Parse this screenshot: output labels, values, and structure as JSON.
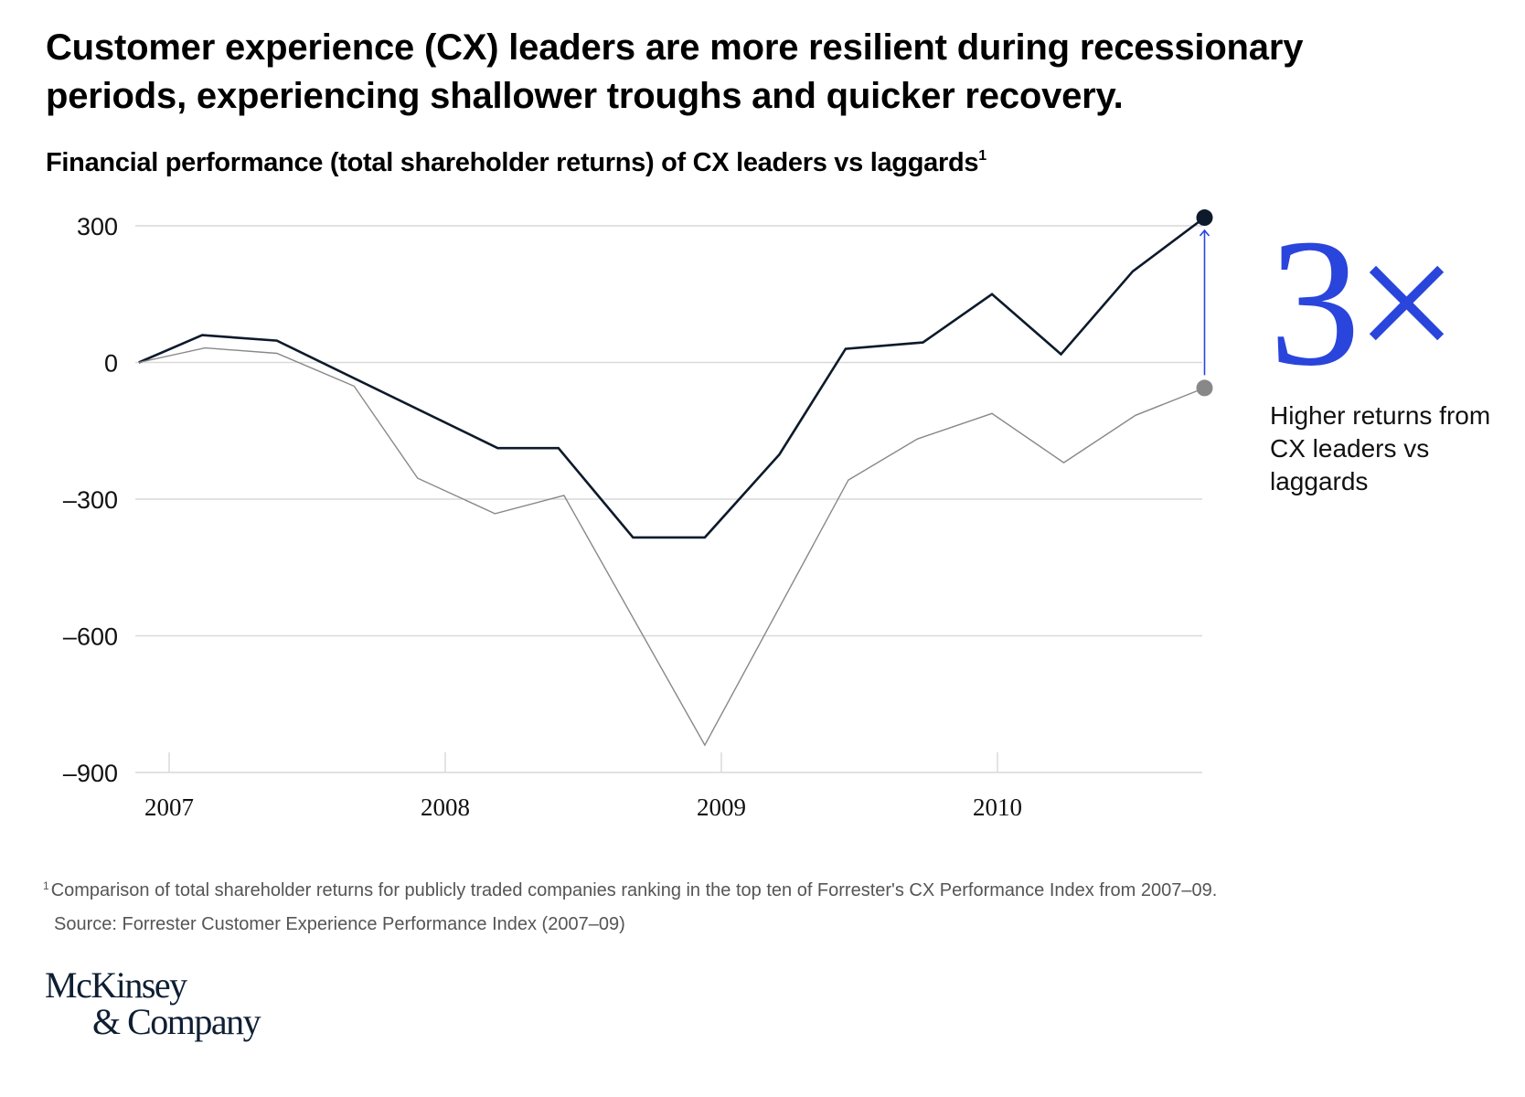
{
  "header": {
    "title": "Customer experience (CX) leaders are more resilient during recessionary periods, experiencing shallower troughs and quicker recovery.",
    "subtitle": "Financial performance (total shareholder returns) of CX leaders vs laggards",
    "subtitle_footnote_marker": "1"
  },
  "callout": {
    "multiplier": "3×",
    "text": "Higher returns from CX leaders vs laggards",
    "accent_color": "#2a45dc"
  },
  "footer": {
    "footnote_marker": "1",
    "footnote": "Comparison of total shareholder returns for publicly traded companies ranking in the top ten of Forrester's CX Performance Index from 2007–09.",
    "source": "Source: Forrester Customer Experience Performance Index (2007–09)",
    "logo_line1": "McKinsey",
    "logo_line2": "& Company"
  },
  "chart_data": {
    "type": "line",
    "title": "Financial performance (total shareholder returns) of CX leaders vs laggards",
    "xlabel": "",
    "ylabel": "",
    "ylim": [
      -900,
      300
    ],
    "xlim": [
      2006.88,
      2010.76
    ],
    "y_ticks": [
      300,
      0,
      -300,
      -600,
      -900
    ],
    "y_tick_labels": [
      "300",
      "0",
      "–300",
      "–600",
      "–900"
    ],
    "x_ticks": [
      2007,
      2008,
      2009,
      2010
    ],
    "x_tick_labels": [
      "2007",
      "2008",
      "2009",
      "2010"
    ],
    "grid": "horizontal",
    "legend": "none",
    "series": [
      {
        "name": "CX leaders",
        "color": "#0c1a2b",
        "x": [
          2006.89,
          2007.12,
          2007.39,
          2008.19,
          2008.41,
          2008.68,
          2008.94,
          2009.21,
          2009.45,
          2009.73,
          2009.98,
          2010.23,
          2010.49,
          2010.75
        ],
        "values": [
          0,
          60,
          48,
          -188,
          -188,
          -384,
          -384,
          -202,
          30,
          44,
          150,
          18,
          200,
          318
        ]
      },
      {
        "name": "CX laggards",
        "color": "#888888",
        "x": [
          2006.89,
          2007.13,
          2007.39,
          2007.67,
          2007.9,
          2008.18,
          2008.43,
          2008.94,
          2009.46,
          2009.71,
          2009.98,
          2010.24,
          2010.5,
          2010.75
        ],
        "values": [
          0,
          32,
          20,
          -52,
          -254,
          -332,
          -292,
          -840,
          -258,
          -168,
          -112,
          -220,
          -116,
          -56
        ]
      }
    ],
    "annotations": [
      {
        "type": "arrow",
        "from_series": "CX laggards",
        "to_series": "CX leaders",
        "x": 2010.75,
        "label": "3×",
        "color": "#2a45dc"
      }
    ]
  }
}
